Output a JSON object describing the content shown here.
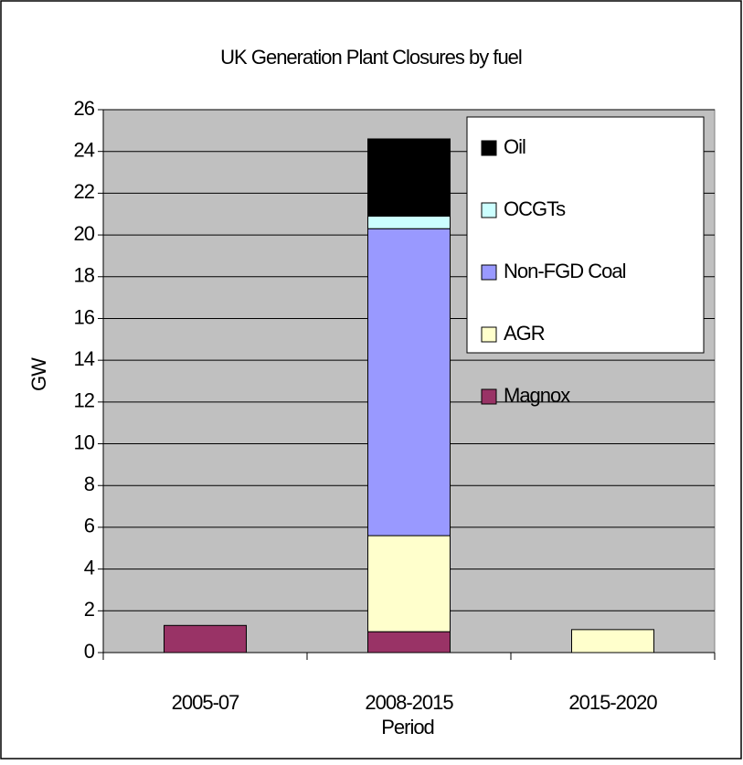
{
  "chart_data": {
    "type": "bar",
    "stacked": true,
    "title": "UK Generation Plant Closures by fuel",
    "x_label": "Period",
    "y_label": "GW",
    "categories": [
      "2005-07",
      "2008-2015",
      "2015-2020"
    ],
    "series": [
      {
        "name": "Magnox",
        "color": "#993366",
        "values": [
          1.3,
          1.0,
          0
        ]
      },
      {
        "name": "AGR",
        "color": "#ffffcc",
        "values": [
          0,
          4.6,
          1.1
        ]
      },
      {
        "name": "Non-FGD Coal",
        "color": "#9999ff",
        "values": [
          0,
          14.7,
          0
        ]
      },
      {
        "name": "OCGTs",
        "color": "#ccffff",
        "values": [
          0,
          0.6,
          0
        ]
      },
      {
        "name": "Oil",
        "color": "#000000",
        "values": [
          0,
          3.7,
          0
        ]
      }
    ],
    "ylim": [
      0,
      26
    ],
    "yticks": [
      0,
      2,
      4,
      6,
      8,
      10,
      12,
      14,
      16,
      18,
      20,
      22,
      24,
      26
    ],
    "grid": true,
    "legend": "upper right",
    "plot_background": "#c0c0c0"
  }
}
